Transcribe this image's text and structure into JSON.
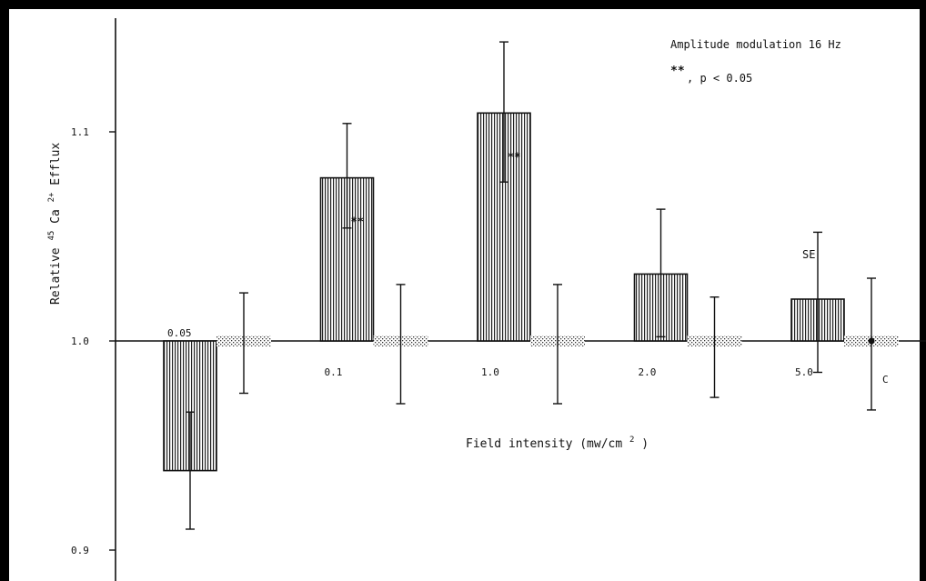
{
  "chart_data": {
    "type": "bar",
    "title": "",
    "xlabel": "Field intensity (mw/cm²)",
    "xlabel_main": "Field intensity (mw/cm",
    "xlabel_sup": "2",
    "xlabel_end": ")",
    "ylabel_parts": {
      "pre": "Relative ",
      "iso": "45",
      "ion": "Ca",
      "charge": "2+",
      "post": " Efflux"
    },
    "ylim": [
      0.89,
      1.15
    ],
    "yticks": [
      0.9,
      1.0,
      1.1
    ],
    "ytick_labels": [
      "0.9",
      "1.0",
      "1.1"
    ],
    "grid": false,
    "legend": "none",
    "categories": [
      "0.05",
      "0.1",
      "1.0",
      "2.0",
      "5.0"
    ],
    "control_label": "C",
    "series": [
      {
        "style": "hatched-vertical",
        "values": [
          0.938,
          1.078,
          1.109,
          1.032,
          1.02
        ],
        "err_low": [
          0.91,
          1.054,
          1.076,
          1.002,
          0.985
        ],
        "err_high": [
          0.966,
          1.104,
          1.143,
          1.063,
          1.052
        ]
      },
      {
        "style": "stippled",
        "values": [
          1.0,
          1.0,
          1.0,
          1.0,
          1.0
        ],
        "err_low": [
          0.975,
          0.97,
          0.97,
          0.973,
          0.967
        ],
        "err_high": [
          1.023,
          1.027,
          1.027,
          1.021,
          1.03
        ]
      }
    ],
    "significance_marks": [
      "",
      "**",
      "**",
      "",
      ""
    ],
    "annotations": {
      "se_label": "SE",
      "legend_title": "Amplitude modulation 16 Hz",
      "legend_mark": "**",
      "legend_text": ",   p < 0.05"
    },
    "colors": {
      "ink": "#111111",
      "background": "#ffffff"
    }
  }
}
